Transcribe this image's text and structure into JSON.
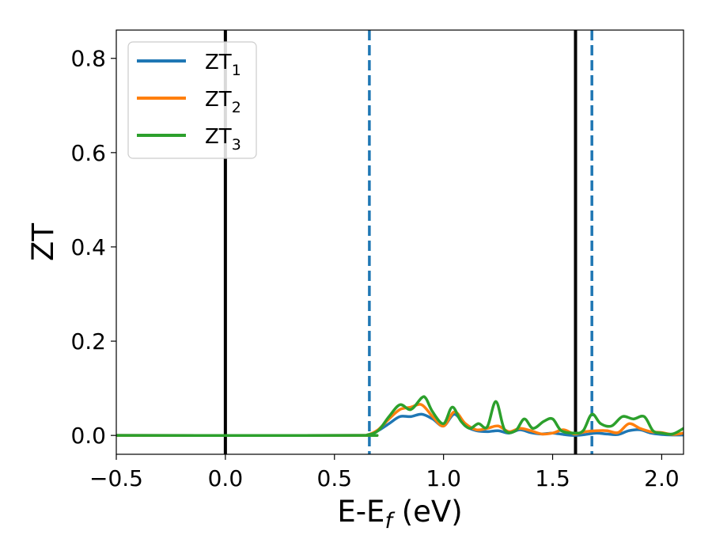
{
  "chart_data": {
    "type": "line",
    "title": "",
    "xlabel": {
      "main": "E-E",
      "sub": "f",
      "suffix": " (eV)"
    },
    "ylabel": "ZT",
    "xlim": [
      -0.5,
      2.1
    ],
    "ylim": [
      -0.04,
      0.86
    ],
    "x_ticks": [
      -0.5,
      0.0,
      0.5,
      1.0,
      1.5,
      2.0
    ],
    "x_tick_labels": [
      "−0.5",
      "0.0",
      "0.5",
      "1.0",
      "1.5",
      "2.0"
    ],
    "y_ticks": [
      0.0,
      0.2,
      0.4,
      0.6,
      0.8
    ],
    "y_tick_labels": [
      "0.0",
      "0.2",
      "0.4",
      "0.6",
      "0.8"
    ],
    "grid": false,
    "legend_position": "top-left",
    "vertical_lines": [
      {
        "x": 0.0,
        "style": "solid",
        "color": "#000000"
      },
      {
        "x": 1.605,
        "style": "solid",
        "color": "#000000"
      },
      {
        "x": 0.66,
        "style": "dashed",
        "color": "#1f77b4"
      },
      {
        "x": 1.68,
        "style": "dashed",
        "color": "#1f77b4"
      }
    ],
    "series": [
      {
        "name": "ZT",
        "sub": "1",
        "color": "#1f77b4",
        "x": [
          -0.5,
          0.6,
          0.65,
          0.7,
          0.75,
          0.8,
          0.85,
          0.9,
          0.95,
          1.0,
          1.05,
          1.1,
          1.15,
          1.2,
          1.25,
          1.3,
          1.35,
          1.4,
          1.45,
          1.5,
          1.55,
          1.6,
          1.65,
          1.7,
          1.75,
          1.8,
          1.85,
          1.9,
          1.95,
          2.0,
          2.05,
          2.1
        ],
        "y": [
          0.0,
          0.0,
          0.001,
          0.01,
          0.025,
          0.04,
          0.04,
          0.045,
          0.035,
          0.02,
          0.045,
          0.02,
          0.01,
          0.008,
          0.01,
          0.005,
          0.012,
          0.006,
          0.003,
          0.005,
          0.002,
          0.0,
          0.002,
          0.005,
          0.003,
          0.002,
          0.01,
          0.012,
          0.005,
          0.002,
          0.001,
          0.001
        ]
      },
      {
        "name": "ZT",
        "sub": "2",
        "color": "#ff7f0e",
        "x": [
          -0.5,
          0.6,
          0.65,
          0.7,
          0.75,
          0.8,
          0.85,
          0.9,
          0.95,
          1.0,
          1.05,
          1.1,
          1.15,
          1.2,
          1.25,
          1.3,
          1.35,
          1.4,
          1.45,
          1.5,
          1.55,
          1.6,
          1.65,
          1.7,
          1.75,
          1.8,
          1.85,
          1.9,
          1.95,
          2.0,
          2.05,
          2.1
        ],
        "y": [
          0.0,
          0.0,
          0.001,
          0.012,
          0.035,
          0.055,
          0.06,
          0.065,
          0.04,
          0.02,
          0.05,
          0.025,
          0.012,
          0.015,
          0.02,
          0.008,
          0.015,
          0.01,
          0.003,
          0.005,
          0.012,
          0.003,
          0.008,
          0.01,
          0.01,
          0.006,
          0.025,
          0.015,
          0.008,
          0.006,
          0.002,
          0.005
        ]
      },
      {
        "name": "ZT",
        "sub": "3",
        "color": "#2ca02c",
        "x": [
          -0.5,
          0.6,
          0.65,
          0.7,
          0.75,
          0.8,
          0.85,
          0.9,
          0.92,
          0.95,
          1.0,
          1.04,
          1.08,
          1.12,
          1.16,
          1.2,
          1.24,
          1.28,
          1.33,
          1.37,
          1.41,
          1.46,
          1.5,
          1.54,
          1.6,
          1.64,
          1.68,
          1.72,
          1.77,
          1.82,
          1.87,
          1.92,
          1.96,
          2.0,
          2.05,
          2.1
        ],
        "y": [
          0.0,
          0.0,
          0.001,
          0.01,
          0.04,
          0.065,
          0.055,
          0.08,
          0.078,
          0.05,
          0.025,
          0.06,
          0.03,
          0.015,
          0.025,
          0.018,
          0.072,
          0.012,
          0.01,
          0.035,
          0.015,
          0.03,
          0.035,
          0.01,
          0.005,
          0.01,
          0.045,
          0.025,
          0.02,
          0.04,
          0.035,
          0.04,
          0.01,
          0.005,
          0.003,
          0.015
        ]
      }
    ]
  }
}
